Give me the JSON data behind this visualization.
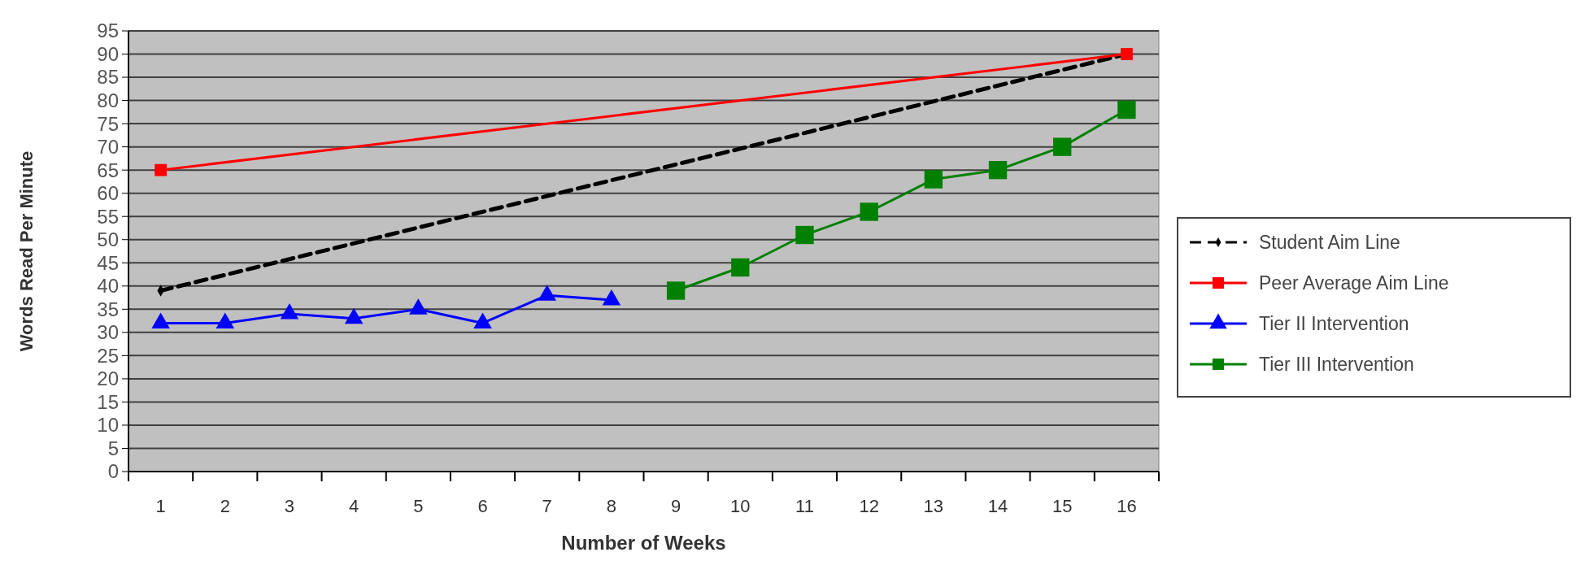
{
  "chart_data": {
    "type": "line",
    "xlabel": "Number of Weeks",
    "ylabel": "Words Read Per Minute",
    "xlim": [
      0.5,
      16.5
    ],
    "xticks": [
      1,
      2,
      3,
      4,
      5,
      6,
      7,
      8,
      9,
      10,
      11,
      12,
      13,
      14,
      15,
      16,
      {
        "value": 0.5,
        "label": null
      },
      {
        "value": 1.5,
        "label": null
      },
      {
        "value": 2.5,
        "label": null
      },
      {
        "value": 3.5,
        "label": null
      },
      {
        "value": 4.5,
        "label": null
      },
      {
        "value": 5.5,
        "label": null
      },
      {
        "value": 6.5,
        "label": null
      },
      {
        "value": 7.5,
        "label": null
      },
      {
        "value": 8.5,
        "label": null
      },
      {
        "value": 9.5,
        "label": null
      },
      {
        "value": 10.5,
        "label": null
      },
      {
        "value": 11.5,
        "label": null
      },
      {
        "value": 12.5,
        "label": null
      },
      {
        "value": 13.5,
        "label": null
      },
      {
        "value": 14.5,
        "label": null
      },
      {
        "value": 15.5,
        "label": null
      },
      {
        "value": 16.5,
        "label": null
      }
    ],
    "series": [
      {
        "name": "Student Aim Line",
        "color": "#000000",
        "x": [
          1,
          16
        ],
        "values": [
          39,
          90
        ],
        "line_style": "dashed",
        "marker": "diamond"
      },
      {
        "name": "Peer Average Aim Line",
        "color": "#ff0000",
        "x": [
          1,
          16
        ],
        "values": [
          65,
          90
        ],
        "line_style": "solid",
        "marker": "square"
      },
      {
        "name": "Tier II Intervention",
        "color": "#0000ff",
        "x": [
          1,
          2,
          3,
          4,
          5,
          6,
          7,
          8
        ],
        "values": [
          32,
          32,
          34,
          33,
          35,
          32,
          38,
          37
        ],
        "line_style": "solid",
        "marker": "triangle"
      },
      {
        "name": "Tier III Intervention",
        "color": "#008000",
        "x": [
          9,
          10,
          11,
          12,
          13,
          14,
          15,
          16
        ],
        "values": [
          39,
          44,
          51,
          56,
          63,
          65,
          70,
          78
        ],
        "line_style": "solid",
        "marker": "square"
      }
    ],
    "ylim": [
      0,
      95
    ],
    "yticks": [
      0,
      5,
      10,
      15,
      20,
      25,
      30,
      35,
      40,
      45,
      50,
      55,
      60,
      65,
      70,
      75,
      80,
      85,
      90,
      95
    ],
    "grid": "y",
    "legend": "right"
  }
}
